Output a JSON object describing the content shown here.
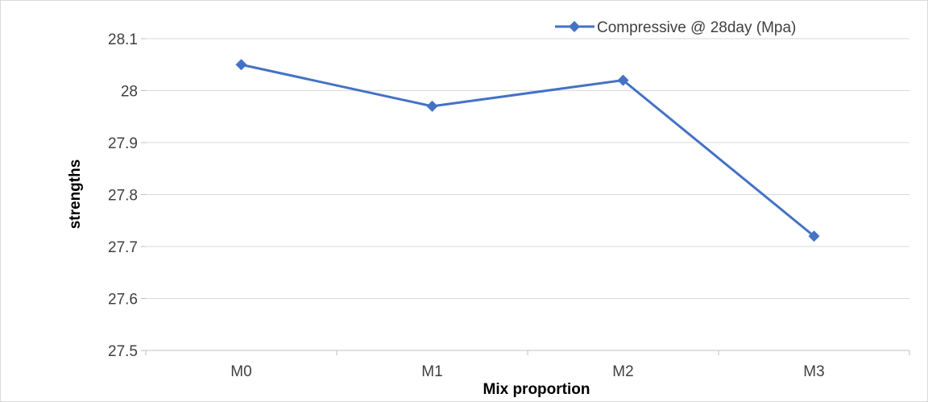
{
  "chart_data": {
    "type": "line",
    "categories": [
      "M0",
      "M1",
      "M2",
      "M3"
    ],
    "series": [
      {
        "name": "Compressive @ 28day (Mpa)",
        "values": [
          28.05,
          27.97,
          28.02,
          27.72
        ]
      }
    ],
    "xlabel": "Mix proportion",
    "ylabel": "strengths",
    "ylim": [
      27.5,
      28.1
    ],
    "yticks": [
      27.5,
      27.6,
      27.7,
      27.8,
      27.9,
      28,
      28.1
    ],
    "grid": true,
    "legend_position": "top-right",
    "colors": {
      "series": "#4472C4",
      "grid": "#d9d9d9",
      "axis": "#bfbfbf"
    }
  }
}
